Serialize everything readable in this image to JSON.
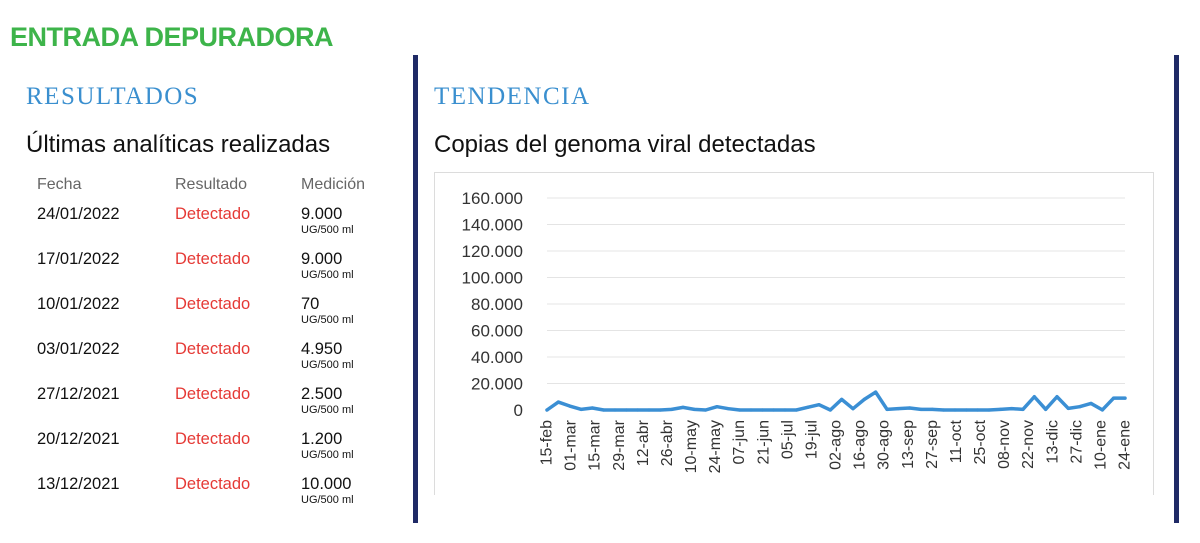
{
  "header": {
    "title": "ENTRADA DEPURADORA"
  },
  "results": {
    "section_label": "RESULTADOS",
    "subtitle": "Últimas analíticas realizadas",
    "columns": [
      "Fecha",
      "Resultado",
      "Medición"
    ],
    "rows": [
      {
        "date": "24/01/2022",
        "result": "Detectado",
        "value": "9.000",
        "unit": "UG/500 ml"
      },
      {
        "date": "17/01/2022",
        "result": "Detectado",
        "value": "9.000",
        "unit": "UG/500 ml"
      },
      {
        "date": "10/01/2022",
        "result": "Detectado",
        "value": "70",
        "unit": "UG/500 ml"
      },
      {
        "date": "03/01/2022",
        "result": "Detectado",
        "value": "4.950",
        "unit": "UG/500 ml"
      },
      {
        "date": "27/12/2021",
        "result": "Detectado",
        "value": "2.500",
        "unit": "UG/500 ml"
      },
      {
        "date": "20/12/2021",
        "result": "Detectado",
        "value": "1.200",
        "unit": "UG/500 ml"
      },
      {
        "date": "13/12/2021",
        "result": "Detectado",
        "value": "10.000",
        "unit": "UG/500 ml"
      }
    ]
  },
  "trend": {
    "section_label": "TENDENCIA",
    "subtitle": "Copias del genoma viral detectadas"
  },
  "colors": {
    "title_green": "#3db44a",
    "section_blue": "#3a8fcf",
    "detected_red": "#e53935",
    "divider_navy": "#1f2a66",
    "line_blue": "#3b8fd4"
  },
  "chart_data": {
    "type": "line",
    "title": "",
    "xlabel": "",
    "ylabel": "",
    "ylim": [
      0,
      160000
    ],
    "yticks": [
      0,
      20000,
      40000,
      60000,
      80000,
      100000,
      120000,
      140000,
      160000
    ],
    "ytick_labels": [
      "0",
      "20.000",
      "40.000",
      "60.000",
      "80.000",
      "100.000",
      "120.000",
      "140.000",
      "160.000"
    ],
    "grid": true,
    "x_tick_labels": [
      "15-feb",
      "01-mar",
      "15-mar",
      "29-mar",
      "12-abr",
      "26-abr",
      "10-may",
      "24-may",
      "07-jun",
      "21-jun",
      "05-jul",
      "19-jul",
      "02-ago",
      "16-ago",
      "30-ago",
      "13-sep",
      "27-sep",
      "11-oct",
      "25-oct",
      "08-nov",
      "22-nov",
      "13-dic",
      "27-dic",
      "10-ene",
      "24-ene"
    ],
    "series": [
      {
        "values": [
          0,
          6000,
          3000,
          500,
          1500,
          0,
          0,
          0,
          0,
          0,
          0,
          500,
          2000,
          500,
          0,
          2500,
          1000,
          0,
          0,
          0,
          0,
          0,
          0,
          2000,
          4000,
          0,
          8000,
          1000,
          8000,
          13500,
          500,
          1000,
          1500,
          500,
          500,
          0,
          0,
          0,
          0,
          0,
          500,
          1000,
          500,
          10000,
          500,
          10000,
          1200,
          2500,
          4950,
          70,
          9000,
          9000
        ]
      }
    ]
  }
}
